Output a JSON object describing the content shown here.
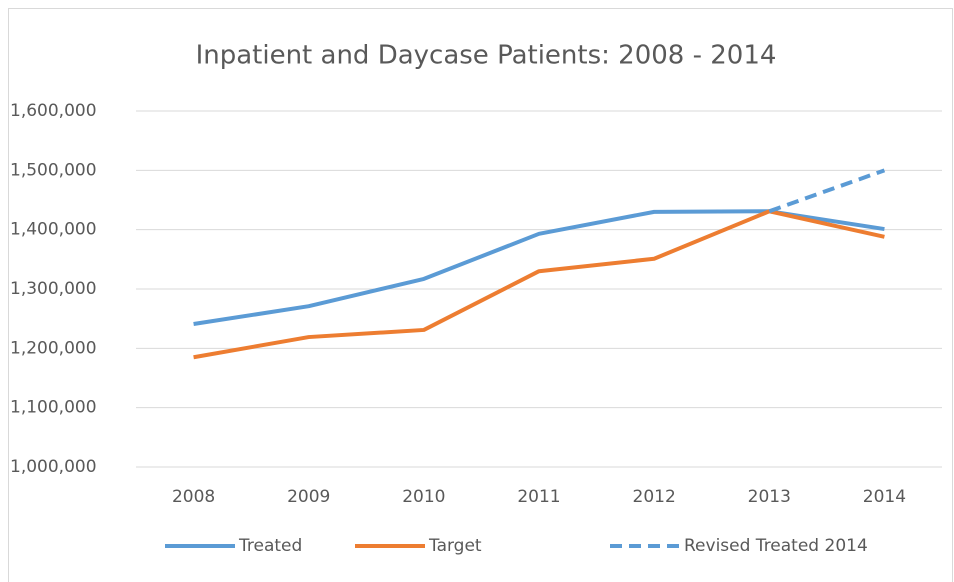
{
  "chart_data": {
    "type": "line",
    "title": "Inpatient and Daycase Patients: 2008 - 2014",
    "categories": [
      "2008",
      "2009",
      "2010",
      "2011",
      "2012",
      "2013",
      "2014"
    ],
    "series": [
      {
        "name": "Treated",
        "color": "#5b9bd5",
        "dashed": false,
        "values": [
          1241000,
          1271000,
          1317000,
          1393000,
          1430000,
          1431000,
          1401000
        ]
      },
      {
        "name": "Target",
        "color": "#ed7d31",
        "dashed": false,
        "values": [
          1185000,
          1219000,
          1231000,
          1330000,
          1351000,
          1431000,
          1388000
        ]
      },
      {
        "name": "Revised Treated 2014",
        "color": "#5b9bd5",
        "dashed": true,
        "values": [
          null,
          null,
          null,
          null,
          null,
          1431000,
          1500000
        ]
      }
    ],
    "ylim": [
      1000000,
      1600000
    ],
    "yticks": [
      {
        "value": 1000000,
        "label": "1,000,000"
      },
      {
        "value": 1100000,
        "label": "1,100,000"
      },
      {
        "value": 1200000,
        "label": "1,200,000"
      },
      {
        "value": 1300000,
        "label": "1,300,000"
      },
      {
        "value": 1400000,
        "label": "1,400,000"
      },
      {
        "value": 1500000,
        "label": "1,500,000"
      },
      {
        "value": 1600000,
        "label": "1,600,000"
      }
    ],
    "grid": true,
    "legend": "bottom"
  }
}
